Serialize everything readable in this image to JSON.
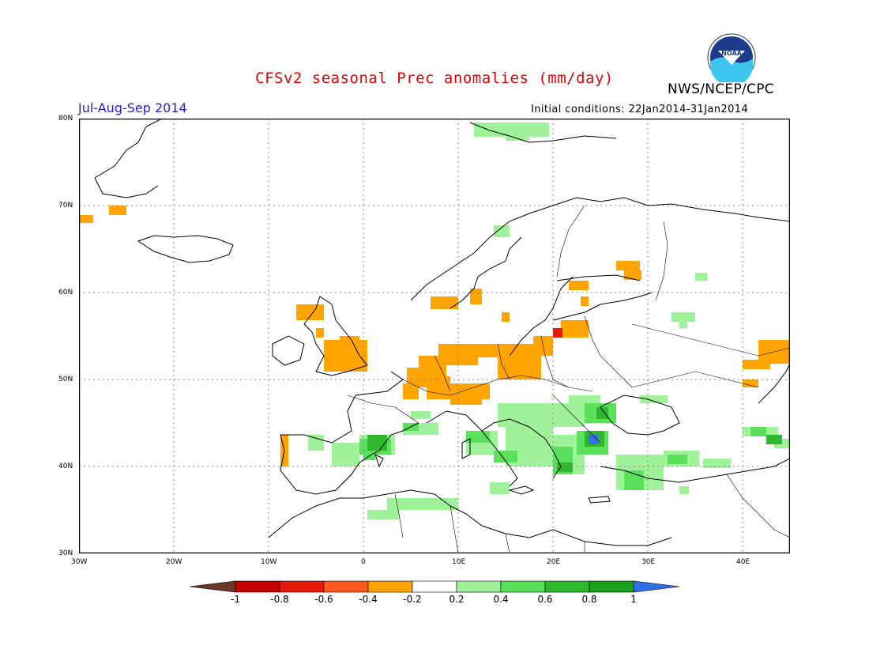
{
  "header": {
    "title": "CFSv2 seasonal Prec anomalies (mm/day)",
    "org": "NWS/NCEP/CPC",
    "logo_text": "NOAA",
    "season": "Jul-Aug-Sep 2014",
    "initial_conditions": "Initial conditions: 22Jan2014-31Jan2014"
  },
  "map": {
    "lon_range": [
      -30,
      45
    ],
    "lat_range": [
      30,
      80
    ],
    "lon_ticks": [
      "30W",
      "20W",
      "10W",
      "0",
      "10E",
      "20E",
      "30E",
      "40E"
    ],
    "lat_ticks": [
      "80N",
      "70N",
      "60N",
      "50N",
      "40N",
      "30N"
    ],
    "gridlines": "dotted"
  },
  "legend": {
    "labels": [
      "-1",
      "-0.8",
      "-0.6",
      "-0.4",
      "-0.2",
      "0.2",
      "0.4",
      "0.6",
      "0.8",
      "1"
    ],
    "colors": [
      "#6b3a24",
      "#c40000",
      "#e81a0e",
      "#ff5a1e",
      "#ffa400",
      "#ffffff",
      "#a0f29a",
      "#5ae05a",
      "#2eb82e",
      "#1aa01a",
      "#2f6fe8"
    ]
  },
  "colors": {
    "dry": "#ffa400",
    "dry_strong": "#e81a0e",
    "wet": "#a0f29a",
    "wet_mid": "#5ae05a",
    "wet_strong": "#2eb82e",
    "wet_max": "#2f6fe8"
  }
}
